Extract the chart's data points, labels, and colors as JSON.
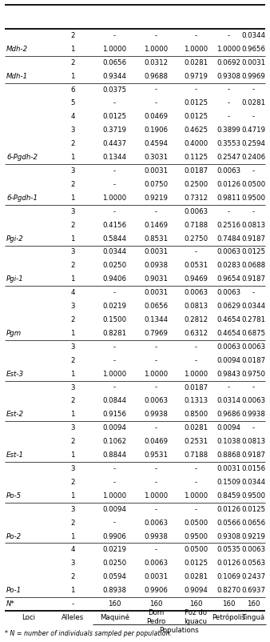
{
  "footnote": "* N = number of individuals sampled per population.",
  "rows": [
    [
      "N*",
      "-",
      "160",
      "160",
      "160",
      "160",
      "160"
    ],
    [
      "Po-1",
      "1",
      "0.8938",
      "0.9906",
      "0.9094",
      "0.8270",
      "0.6937"
    ],
    [
      "",
      "2",
      "0.0594",
      "0.0031",
      "0.0281",
      "0.1069",
      "0.2437"
    ],
    [
      "",
      "3",
      "0.0250",
      "0.0063",
      "0.0125",
      "0.0126",
      "0.0563"
    ],
    [
      "",
      "4",
      "0.0219",
      "-",
      "0.0500",
      "0.0535",
      "0.0063"
    ],
    [
      "Po-2",
      "1",
      "0.9906",
      "0.9938",
      "0.9500",
      "0.9308",
      "0.9219"
    ],
    [
      "",
      "2",
      "-",
      "0.0063",
      "0.0500",
      "0.0566",
      "0.0656"
    ],
    [
      "",
      "3",
      "0.0094",
      "-",
      "-",
      "0.0126",
      "0.0125"
    ],
    [
      "Po-5",
      "1",
      "1.0000",
      "1.0000",
      "1.0000",
      "0.8459",
      "0.9500"
    ],
    [
      "",
      "2",
      "-",
      "-",
      "-",
      "0.1509",
      "0.0344"
    ],
    [
      "",
      "3",
      "-",
      "-",
      "-",
      "0.0031",
      "0.0156"
    ],
    [
      "Est-1",
      "1",
      "0.8844",
      "0.9531",
      "0.7188",
      "0.8868",
      "0.9187"
    ],
    [
      "",
      "2",
      "0.1062",
      "0.0469",
      "0.2531",
      "0.1038",
      "0.0813"
    ],
    [
      "",
      "3",
      "0.0094",
      "-",
      "0.0281",
      "0.0094",
      "-"
    ],
    [
      "Est-2",
      "1",
      "0.9156",
      "0.9938",
      "0.8500",
      "0.9686",
      "0.9938"
    ],
    [
      "",
      "2",
      "0.0844",
      "0.0063",
      "0.1313",
      "0.0314",
      "0.0063"
    ],
    [
      "",
      "3",
      "-",
      "-",
      "0.0187",
      "-",
      "-"
    ],
    [
      "Est-3",
      "1",
      "1.0000",
      "1.0000",
      "1.0000",
      "0.9843",
      "0.9750"
    ],
    [
      "",
      "2",
      "-",
      "-",
      "-",
      "0.0094",
      "0.0187"
    ],
    [
      "",
      "3",
      "-",
      "-",
      "-",
      "0.0063",
      "0.0063"
    ],
    [
      "Pgm",
      "1",
      "0.8281",
      "0.7969",
      "0.6312",
      "0.4654",
      "0.6875"
    ],
    [
      "",
      "2",
      "0.1500",
      "0.1344",
      "0.2812",
      "0.4654",
      "0.2781"
    ],
    [
      "",
      "3",
      "0.0219",
      "0.0656",
      "0.0813",
      "0.0629",
      "0.0344"
    ],
    [
      "",
      "4",
      "-",
      "0.0031",
      "0.0063",
      "0.0063",
      "-"
    ],
    [
      "Pgi-1",
      "1",
      "0.9406",
      "0.9031",
      "0.9469",
      "0.9654",
      "0.9187"
    ],
    [
      "",
      "2",
      "0.0250",
      "0.0938",
      "0.0531",
      "0.0283",
      "0.0688"
    ],
    [
      "",
      "3",
      "0.0344",
      "0.0031",
      "-",
      "0.0063",
      "0.0125"
    ],
    [
      "Pgi-2",
      "1",
      "0.5844",
      "0.8531",
      "0.2750",
      "0.7484",
      "0.9187"
    ],
    [
      "",
      "2",
      "0.4156",
      "0.1469",
      "0.7188",
      "0.2516",
      "0.0813"
    ],
    [
      "",
      "3",
      "-",
      "-",
      "0.0063",
      "-",
      "-"
    ],
    [
      "6-Pgdh-1",
      "1",
      "1.0000",
      "0.9219",
      "0.7312",
      "0.9811",
      "0.9500"
    ],
    [
      "",
      "2",
      "-",
      "0.0750",
      "0.2500",
      "0.0126",
      "0.0500"
    ],
    [
      "",
      "3",
      "-",
      "0.0031",
      "0.0187",
      "0.0063",
      "-"
    ],
    [
      "6-Pgdh-2",
      "1",
      "0.1344",
      "0.3031",
      "0.1125",
      "0.2547",
      "0.2406"
    ],
    [
      "",
      "2",
      "0.4437",
      "0.4594",
      "0.4000",
      "0.3553",
      "0.2594"
    ],
    [
      "",
      "3",
      "0.3719",
      "0.1906",
      "0.4625",
      "0.3899",
      "0.4719"
    ],
    [
      "",
      "4",
      "0.0125",
      "0.0469",
      "0.0125",
      "-",
      "-"
    ],
    [
      "",
      "5",
      "-",
      "-",
      "0.0125",
      "-",
      "0.0281"
    ],
    [
      "",
      "6",
      "0.0375",
      "-",
      "-",
      "-",
      "-"
    ],
    [
      "Mdh-1",
      "1",
      "0.9344",
      "0.9688",
      "0.9719",
      "0.9308",
      "0.9969"
    ],
    [
      "",
      "2",
      "0.0656",
      "0.0312",
      "0.0281",
      "0.0692",
      "0.0031"
    ],
    [
      "Mdh-2",
      "1",
      "1.0000",
      "1.0000",
      "1.0000",
      "1.0000",
      "0.9656"
    ],
    [
      "",
      "2",
      "-",
      "-",
      "-",
      "-",
      "0.0344"
    ]
  ],
  "separator_before": [
    1,
    5,
    8,
    11,
    14,
    17,
    20,
    24,
    27,
    30,
    33,
    39,
    41
  ],
  "bg_color": "#ffffff",
  "text_color": "#000000",
  "font_size": 6.2
}
